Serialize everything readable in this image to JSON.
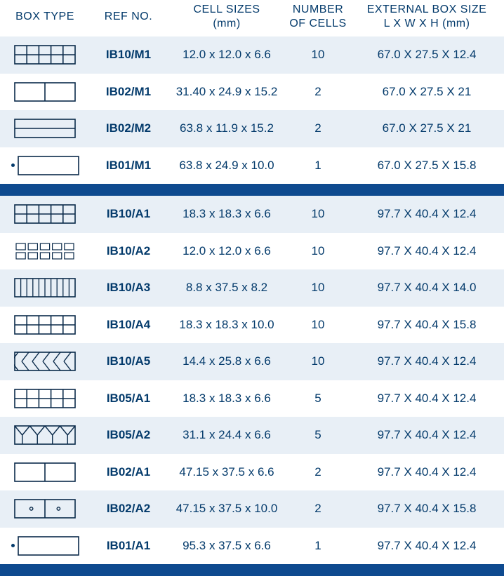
{
  "colors": {
    "text": "#033a6b",
    "rowAlt": "#e8eff6",
    "separator": "#0e4a8f",
    "iconStroke": "#0a2a4a"
  },
  "headers": {
    "boxType": "BOX TYPE",
    "refNo": "REF NO.",
    "cellSizes": "CELL SIZES\n(mm)",
    "numCells": "NUMBER\nOF CELLS",
    "extSize": "EXTERNAL BOX SIZE\nL X W X H (mm)"
  },
  "groups": [
    {
      "rows": [
        {
          "icon": "grid5x2",
          "ref": "IB10/M1",
          "cell": "12.0 x 12.0 x 6.6",
          "num": "10",
          "ext": "67.0 X 27.5 X 12.4",
          "dot": false
        },
        {
          "icon": "split2",
          "ref": "IB02/M1",
          "cell": "31.40 x 24.9 x 15.2",
          "num": "2",
          "ext": "67.0 X 27.5 X 21",
          "dot": false
        },
        {
          "icon": "hsplit2",
          "ref": "IB02/M2",
          "cell": "63.8 x 11.9 x 15.2",
          "num": "2",
          "ext": "67.0 X 27.5 X 21",
          "dot": false
        },
        {
          "icon": "single",
          "ref": "IB01/M1",
          "cell": "63.8 x 24.9 x 10.0",
          "num": "1",
          "ext": "67.0 X 27.5 X 15.8",
          "dot": true
        }
      ]
    },
    {
      "rows": [
        {
          "icon": "grid5x2",
          "ref": "IB10/A1",
          "cell": "18.3 x 18.3 x 6.6",
          "num": "10",
          "ext": "97.7 X 40.4 X 12.4",
          "dot": false
        },
        {
          "icon": "grid5x2sq",
          "ref": "IB10/A2",
          "cell": "12.0 x 12.0 x 6.6",
          "num": "10",
          "ext": "97.7 X 40.4 X 12.4",
          "dot": false
        },
        {
          "icon": "vstrip10",
          "ref": "IB10/A3",
          "cell": "8.8 x 37.5 x 8.2",
          "num": "10",
          "ext": "97.7 X 40.4 X 14.0",
          "dot": false
        },
        {
          "icon": "grid5x2",
          "ref": "IB10/A4",
          "cell": "18.3 x 18.3 x 10.0",
          "num": "10",
          "ext": "97.7 X 40.4 X 15.8",
          "dot": false
        },
        {
          "icon": "herring",
          "ref": "IB10/A5",
          "cell": "14.4 x 25.8 x 6.6",
          "num": "10",
          "ext": "97.7 X 40.4 X 12.4",
          "dot": false
        },
        {
          "icon": "grid5x2o",
          "ref": "IB05/A1",
          "cell": "18.3 x 18.3 x 6.6",
          "num": "5",
          "ext": "97.7 X 40.4 X 12.4",
          "dot": false
        },
        {
          "icon": "hex5",
          "ref": "IB05/A2",
          "cell": "31.1 x 24.4 x 6.6",
          "num": "5",
          "ext": "97.7 X 40.4 X 12.4",
          "dot": false
        },
        {
          "icon": "split2",
          "ref": "IB02/A1",
          "cell": "47.15 x 37.5 x 6.6",
          "num": "2",
          "ext": "97.7 X 40.4 X 12.4",
          "dot": false
        },
        {
          "icon": "split2dot",
          "ref": "IB02/A2",
          "cell": "47.15 x 37.5 x 10.0",
          "num": "2",
          "ext": "97.7 X 40.4 X 15.8",
          "dot": false
        },
        {
          "icon": "single",
          "ref": "IB01/A1",
          "cell": "95.3 x 37.5 x 6.6",
          "num": "1",
          "ext": "97.7 X 40.4 X 12.4",
          "dot": true
        }
      ]
    }
  ]
}
